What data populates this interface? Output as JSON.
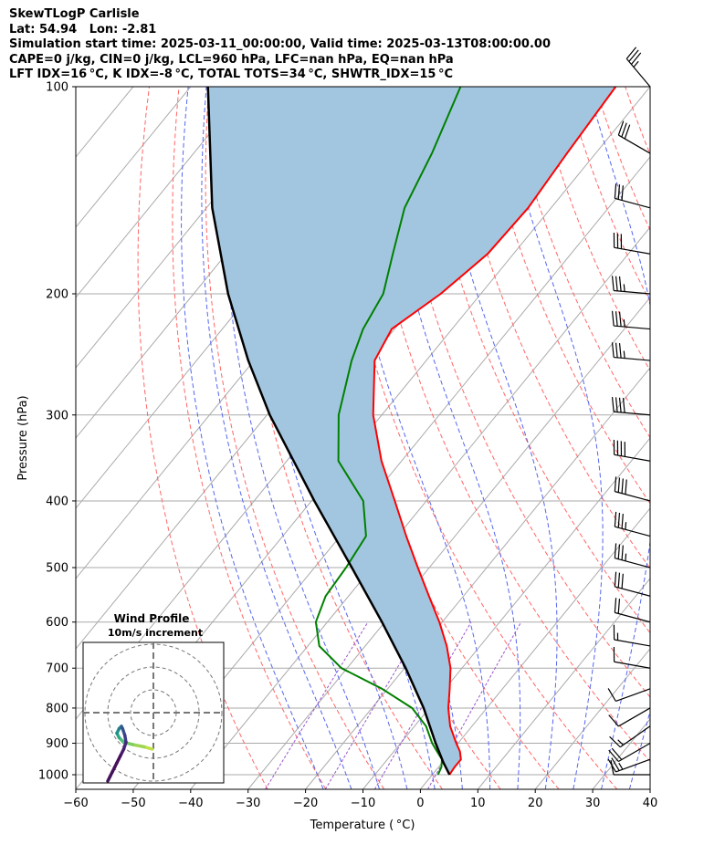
{
  "header": {
    "line1": "SkewTLogP Carlisle",
    "line2": "Lat: 54.94   Lon: -2.81",
    "line3": "Simulation start time: 2025-03-11_00:00:00, Valid time: 2025-03-13T08:00:00.00",
    "line4": "CAPE=0 j/kg, CIN=0 j/kg, LCL=960 hPa, LFC=nan hPa, EQ=nan hPa",
    "line5": "LFT IDX=16 °C, K IDX=-8 °C, TOTAL TOTS=34 °C, SHWTR_IDX=15 °C"
  },
  "hodograph": {
    "title_line1": "Wind Profile",
    "title_line2": "10m/s increment"
  },
  "colors": {
    "temperature": "#ff0000",
    "dewpoint": "#008000",
    "parcel": "#000000",
    "cape_fill": "#a3c6e0",
    "dry_adiabat": "#ff6666",
    "moist_adiabat": "#5566ee",
    "isotherm": "#aaaaaa",
    "mixing_ratio": "#9955cc"
  },
  "chart_data": {
    "type": "line",
    "title": "SkewTLogP Carlisle",
    "xlabel": "Temperature ( °C)",
    "ylabel": "Pressure (hPa)",
    "xlim": [
      -60,
      40
    ],
    "ylim": [
      1050,
      100
    ],
    "x_ticks": [
      "−60",
      "−50",
      "−40",
      "−30",
      "−20",
      "−10",
      "0",
      "10",
      "20",
      "30",
      "40"
    ],
    "y_ticks": [
      "100",
      "200",
      "300",
      "400",
      "500",
      "600",
      "700",
      "800",
      "900",
      "1000"
    ],
    "series": [
      {
        "name": "Temperature",
        "pressure": [
          1000,
          975,
          950,
          925,
          900,
          850,
          800,
          750,
          700,
          650,
          600,
          550,
          500,
          450,
          400,
          350,
          300,
          250,
          225,
          200,
          175,
          150,
          125,
          100
        ],
        "values": [
          3.0,
          2.8,
          2.8,
          1.5,
          -0.3,
          -3.8,
          -6.7,
          -9.2,
          -12.0,
          -15.8,
          -20.5,
          -26.0,
          -32.0,
          -38.5,
          -45.5,
          -53.5,
          -61.5,
          -69.0,
          -70.5,
          -67.0,
          -64.5,
          -64.0,
          -65.0,
          -66.0
        ]
      },
      {
        "name": "Dewpoint",
        "pressure": [
          1000,
          975,
          950,
          925,
          900,
          850,
          800,
          750,
          700,
          650,
          600,
          550,
          500,
          450,
          400,
          350,
          300,
          250,
          225,
          200,
          175,
          150,
          125,
          100
        ],
        "values": [
          1.0,
          0.5,
          -0.5,
          -2.5,
          -4.5,
          -8.0,
          -13.0,
          -21.0,
          -31.0,
          -38.0,
          -42.0,
          -44.0,
          -44.5,
          -45.5,
          -51.0,
          -61.0,
          -67.5,
          -73.0,
          -75.5,
          -77.0,
          -81.0,
          -85.5,
          -88.5,
          -93.0
        ]
      },
      {
        "name": "Parcel",
        "pressure": [
          1000,
          960,
          900,
          800,
          700,
          600,
          500,
          400,
          300,
          250,
          200,
          150,
          100
        ],
        "values": [
          3.0,
          0.2,
          -3.9,
          -11.0,
          -19.8,
          -30.5,
          -43.5,
          -59.5,
          -79.5,
          -91.0,
          -104.0,
          -119.0,
          -137.0
        ]
      }
    ],
    "wind_barbs": {
      "pressure": [
        100,
        125,
        150,
        175,
        200,
        225,
        250,
        300,
        350,
        400,
        450,
        500,
        550,
        600,
        650,
        700,
        750,
        800,
        850,
        900,
        950,
        1000
      ],
      "speed_kt": [
        35,
        30,
        30,
        30,
        35,
        35,
        35,
        40,
        40,
        40,
        35,
        35,
        30,
        20,
        15,
        10,
        10,
        10,
        15,
        20,
        25,
        10
      ],
      "direction_deg": [
        320,
        300,
        285,
        280,
        275,
        275,
        275,
        275,
        280,
        285,
        285,
        285,
        285,
        285,
        280,
        280,
        250,
        240,
        235,
        240,
        250,
        270
      ]
    },
    "hodograph_u": [
      -20,
      -19,
      -18,
      -17,
      -16,
      -14.5,
      -13,
      -12,
      -12.5,
      -13.5,
      -14,
      -15,
      -16,
      -15,
      -13,
      -9,
      -4,
      -0.5
    ],
    "hodograph_v": [
      -30,
      -28,
      -26,
      -24,
      -22,
      -19,
      -16,
      -13,
      -10,
      -7,
      -6,
      -7,
      -9,
      -11,
      -13,
      -14,
      -15,
      -16
    ]
  }
}
